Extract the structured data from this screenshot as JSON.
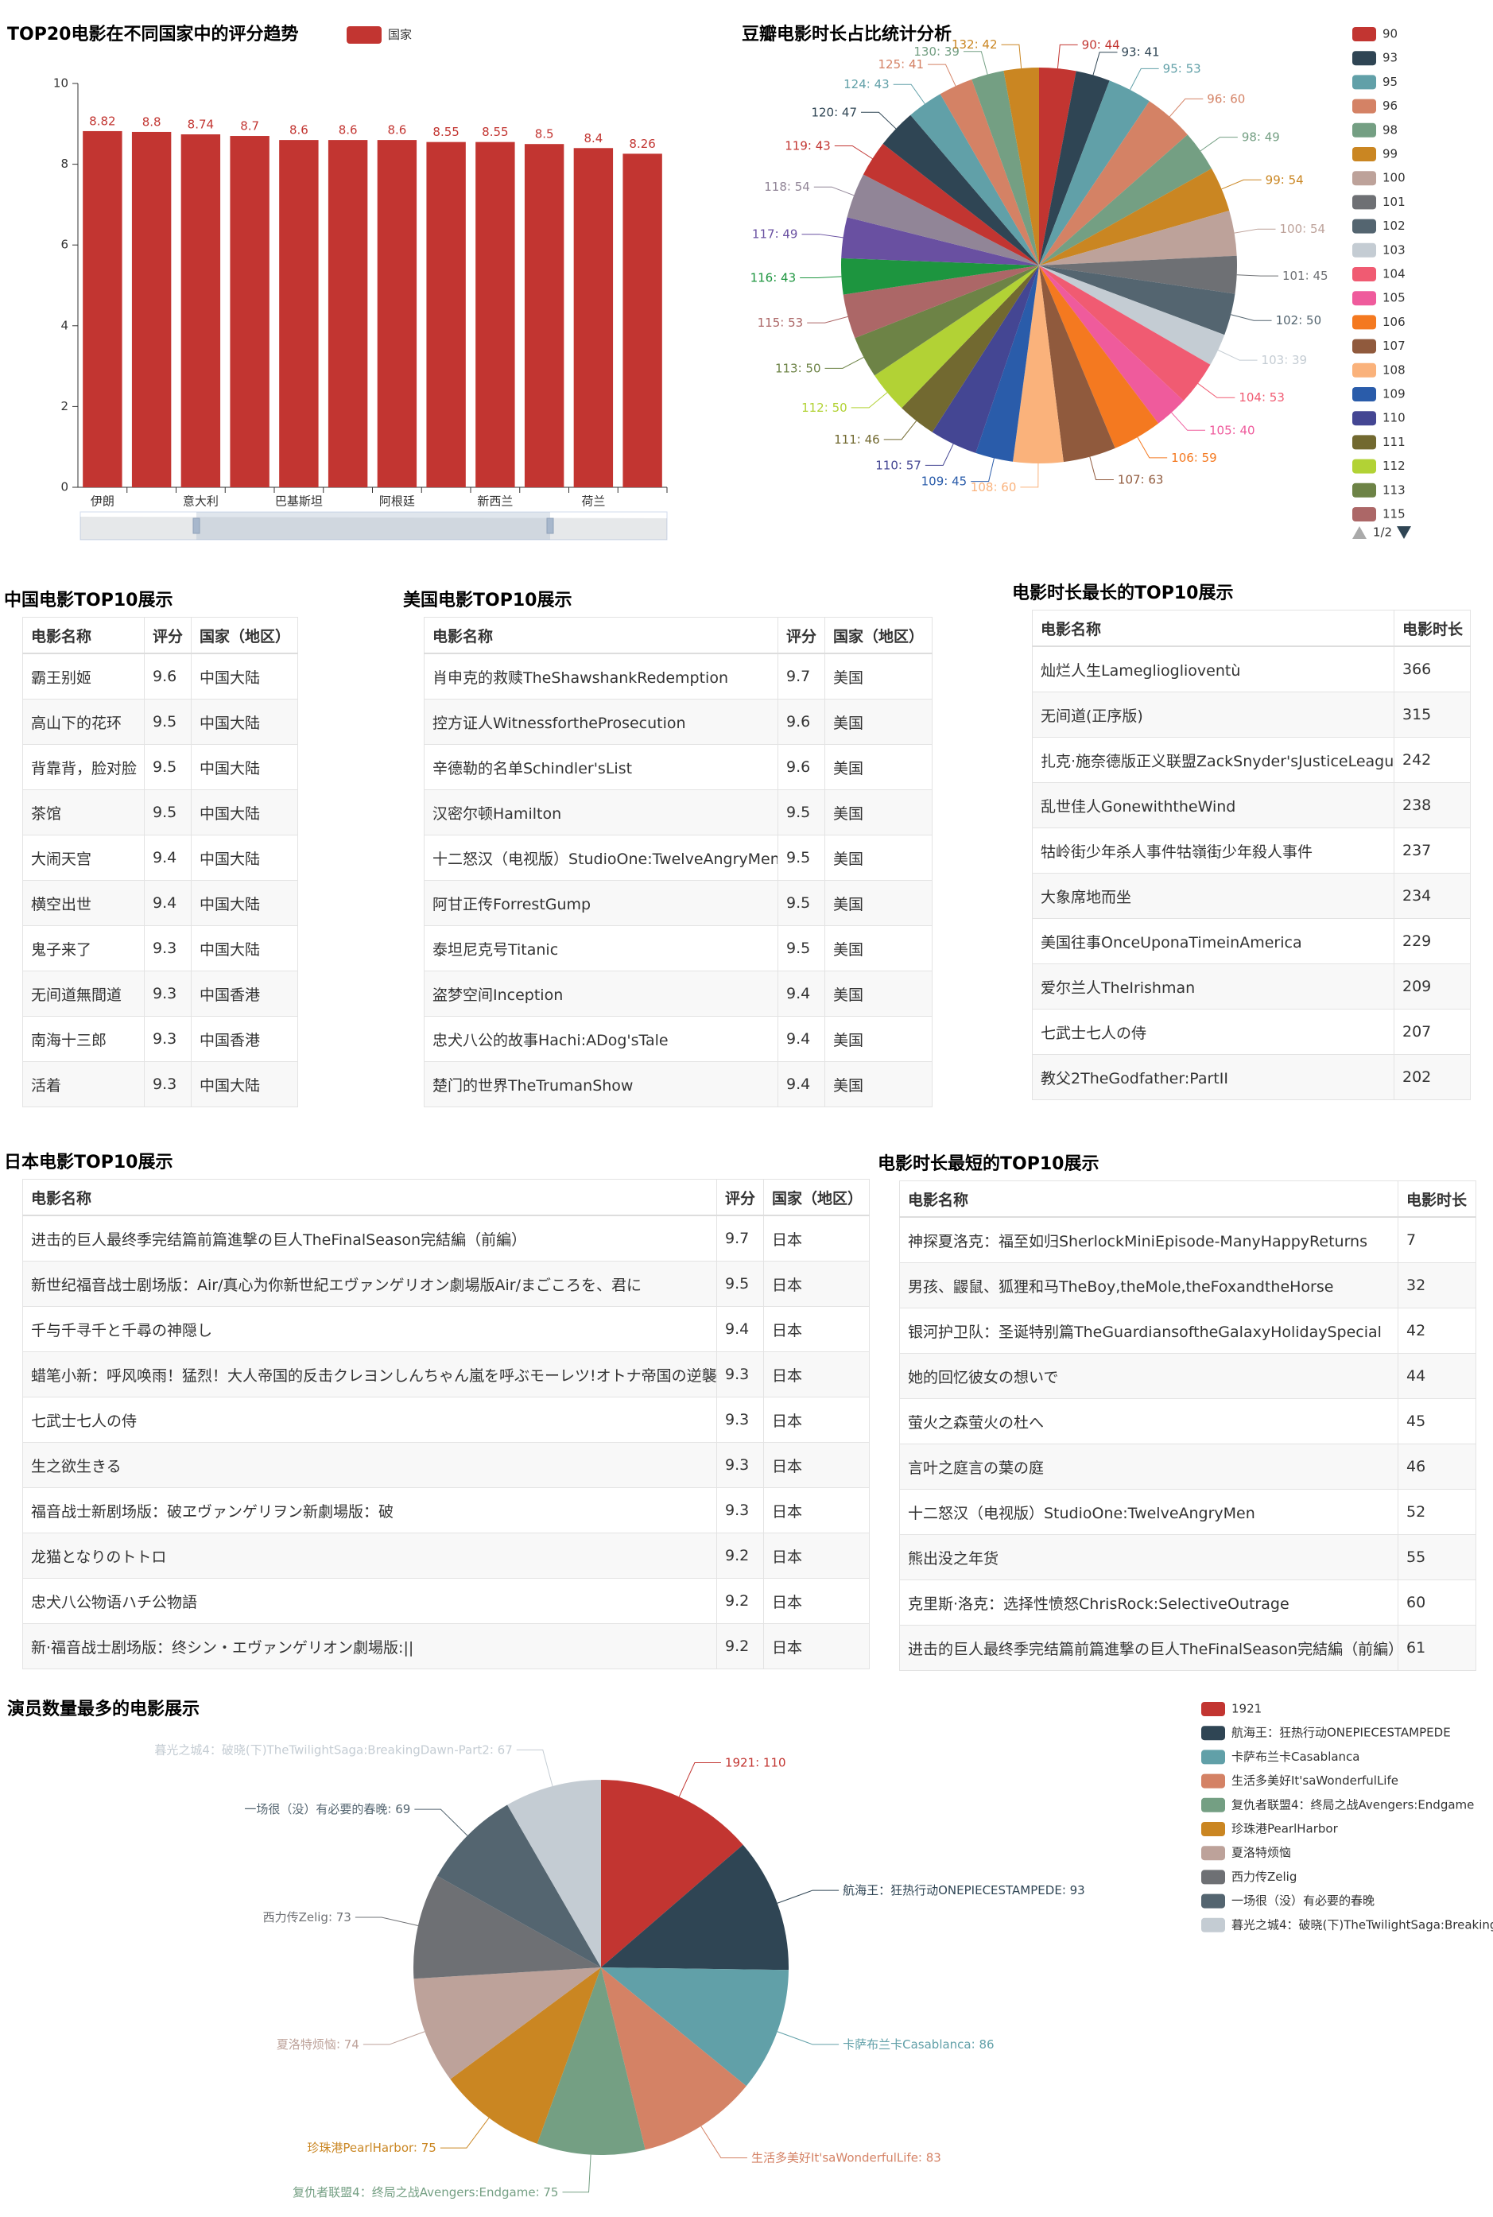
{
  "chart_data": [
    {
      "type": "bar",
      "title": "TOP20电影在不同国家中的评分趋势",
      "categories": [
        "伊朗",
        null,
        "意大利",
        null,
        "巴基斯坦",
        null,
        "阿根廷",
        null,
        "新西兰",
        null,
        "荷兰",
        null
      ],
      "series": [
        {
          "name": "国家",
          "color": "#c23531",
          "values": [
            8.82,
            8.8,
            8.74,
            8.7,
            8.6,
            8.6,
            8.6,
            8.55,
            8.55,
            8.5,
            8.4,
            8.26
          ]
        }
      ],
      "ylim": [
        0,
        10
      ],
      "yticks": [
        0,
        2,
        4,
        6,
        8,
        10
      ],
      "grid": false,
      "data_zoom": true
    },
    {
      "type": "pie",
      "title": "豆瓣电影时长占比统计分析",
      "categories": [
        "90",
        "93",
        "95",
        "96",
        "98",
        "99",
        "100",
        "101",
        "102",
        "103",
        "104",
        "105",
        "106",
        "107",
        "108",
        "109",
        "110",
        "111",
        "112",
        "113",
        "115",
        "116",
        "117",
        "118",
        "119",
        "120",
        "124",
        "125",
        "130",
        "132"
      ],
      "values": [
        44,
        41,
        53,
        60,
        49,
        54,
        54,
        45,
        50,
        39,
        53,
        40,
        59,
        63,
        60,
        45,
        57,
        46,
        50,
        50,
        53,
        43,
        49,
        54,
        43,
        47,
        43,
        41,
        39,
        42
      ],
      "colors": [
        "#c23531",
        "#2f4554",
        "#61a0a8",
        "#d48265",
        "#749f83",
        "#ca8622",
        "#bda29a",
        "#6e7074",
        "#546570",
        "#c4ccd3",
        "#f05b72",
        "#ef5b9c",
        "#f47920",
        "#905a3d",
        "#fab27b",
        "#2a5caa",
        "#444693",
        "#726930",
        "#b2d235",
        "#6d8346",
        "#ac6767",
        "#1d953f",
        "#6950a1",
        "#918597"
      ],
      "legend_page": "1/2"
    },
    {
      "type": "pie",
      "title": "演员数量最多的电影展示",
      "categories": [
        "1921",
        "航海王：狂热行动ONEPIECESTAMPEDE",
        "卡萨布兰卡Casablanca",
        "生活多美好It'saWonderfulLife",
        "复仇者联盟4：终局之战Avengers:Endgame",
        "珍珠港PearlHarbor",
        "夏洛特烦恼",
        "西力传Zelig",
        "一场很（没）有必要的春晚",
        "暮光之城4：破晓(下)TheTwilightSaga:BreakingDawn-Part2"
      ],
      "values": [
        110,
        93,
        86,
        83,
        75,
        75,
        74,
        73,
        69,
        67
      ],
      "colors": [
        "#c23531",
        "#2f4554",
        "#61a0a8",
        "#d48265",
        "#749f83",
        "#ca8622",
        "#bda29a",
        "#6e7074",
        "#546570",
        "#c4ccd3"
      ]
    }
  ],
  "tables": [
    {
      "title": "中国电影TOP10展示",
      "columns": [
        "电影名称",
        "评分",
        "国家（地区）"
      ],
      "rows": [
        [
          "霸王别姬",
          9.6,
          "中国大陆"
        ],
        [
          "高山下的花环",
          9.5,
          "中国大陆"
        ],
        [
          "背靠背，脸对脸",
          9.5,
          "中国大陆"
        ],
        [
          "茶馆",
          9.5,
          "中国大陆"
        ],
        [
          "大闹天宫",
          9.4,
          "中国大陆"
        ],
        [
          "横空出世",
          9.4,
          "中国大陆"
        ],
        [
          "鬼子来了",
          9.3,
          "中国大陆"
        ],
        [
          "无间道無間道",
          9.3,
          "中国香港"
        ],
        [
          "南海十三郎",
          9.3,
          "中国香港"
        ],
        [
          "活着",
          9.3,
          "中国大陆"
        ]
      ]
    },
    {
      "title": "美国电影TOP10展示",
      "columns": [
        "电影名称",
        "评分",
        "国家（地区）"
      ],
      "rows": [
        [
          "肖申克的救赎TheShawshankRedemption",
          9.7,
          "美国"
        ],
        [
          "控方证人WitnessfortheProsecution",
          9.6,
          "美国"
        ],
        [
          "辛德勒的名单Schindler'sList",
          9.6,
          "美国"
        ],
        [
          "汉密尔顿Hamilton",
          9.5,
          "美国"
        ],
        [
          "十二怒汉（电视版）StudioOne:TwelveAngryMen",
          9.5,
          "美国"
        ],
        [
          "阿甘正传ForrestGump",
          9.5,
          "美国"
        ],
        [
          "泰坦尼克号Titanic",
          9.5,
          "美国"
        ],
        [
          "盗梦空间Inception",
          9.4,
          "美国"
        ],
        [
          "忠犬八公的故事Hachi:ADog'sTale",
          9.4,
          "美国"
        ],
        [
          "楚门的世界TheTrumanShow",
          9.4,
          "美国"
        ]
      ]
    },
    {
      "title": "电影时长最长的TOP10展示",
      "columns": [
        "电影名称",
        "电影时长"
      ],
      "rows": [
        [
          "灿烂人生Lameglioglioventù",
          366
        ],
        [
          "无间道(正序版)",
          315
        ],
        [
          "扎克·施奈德版正义联盟ZackSnyder'sJusticeLeague",
          242
        ],
        [
          "乱世佳人GonewiththeWind",
          238
        ],
        [
          "牯岭街少年杀人事件牯嶺街少年殺人事件",
          237
        ],
        [
          "大象席地而坐",
          234
        ],
        [
          "美国往事OnceUponaTimeinAmerica",
          229
        ],
        [
          "爱尔兰人TheIrishman",
          209
        ],
        [
          "七武士七人の侍",
          207
        ],
        [
          "教父2TheGodfather:PartII",
          202
        ]
      ]
    },
    {
      "title": "日本电影TOP10展示",
      "columns": [
        "电影名称",
        "评分",
        "国家（地区）"
      ],
      "rows": [
        [
          "进击的巨人最终季完结篇前篇進撃の巨人TheFinalSeason完結編（前編）",
          9.7,
          "日本"
        ],
        [
          "新世纪福音战士剧场版：Air/真心为你新世紀エヴァンゲリオン劇場版Air/まごころを、君に",
          9.5,
          "日本"
        ],
        [
          "千与千寻千と千尋の神隠し",
          9.4,
          "日本"
        ],
        [
          "蜡笔小新：呼风唤雨！猛烈！大人帝国的反击クレヨンしんちゃん嵐を呼ぶモーレツ!オトナ帝国の逆襲",
          9.3,
          "日本"
        ],
        [
          "七武士七人の侍",
          9.3,
          "日本"
        ],
        [
          "生之欲生きる",
          9.3,
          "日本"
        ],
        [
          "福音战士新剧场版：破ヱヴァンゲリヲン新劇場版：破",
          9.3,
          "日本"
        ],
        [
          "龙猫となりのトトロ",
          9.2,
          "日本"
        ],
        [
          "忠犬八公物语ハチ公物語",
          9.2,
          "日本"
        ],
        [
          "新·福音战士剧场版：终シン・エヴァンゲリオン劇場版:||",
          9.2,
          "日本"
        ]
      ]
    },
    {
      "title": "电影时长最短的TOP10展示",
      "columns": [
        "电影名称",
        "电影时长"
      ],
      "rows": [
        [
          "神探夏洛克：福至如归SherlockMiniEpisode-ManyHappyReturns",
          7
        ],
        [
          "男孩、鼹鼠、狐狸和马TheBoy,theMole,theFoxandtheHorse",
          32
        ],
        [
          "银河护卫队：圣诞特别篇TheGuardiansoftheGalaxyHolidaySpecial",
          42
        ],
        [
          "她的回忆彼女の想いで",
          44
        ],
        [
          "萤火之森萤火の杜へ",
          45
        ],
        [
          "言叶之庭言の葉の庭",
          46
        ],
        [
          "十二怒汉（电视版）StudioOne:TwelveAngryMen",
          52
        ],
        [
          "熊出没之年货",
          55
        ],
        [
          "克里斯·洛克：选择性愤怒ChrisRock:SelectiveOutrage",
          60
        ],
        [
          "进击的巨人最终季完结篇前篇進撃の巨人TheFinalSeason完結編（前編）",
          61
        ]
      ]
    }
  ]
}
